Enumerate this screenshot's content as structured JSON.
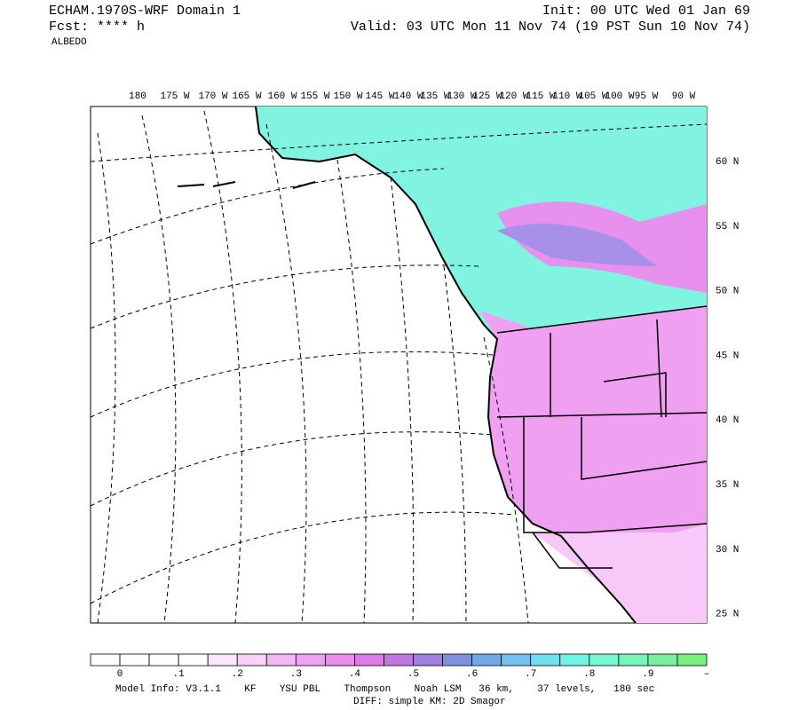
{
  "header": {
    "model": "ECHAM.1970S-WRF Domain 1",
    "forecast": "Fcst: **** h",
    "field": "ALBEDO",
    "init": "Init: 00 UTC Wed 01 Jan 69",
    "valid": "Valid: 03 UTC Mon 11 Nov 74 (19 PST Sun 10 Nov 74)"
  },
  "map": {
    "longitude_labels": [
      "180",
      "175 W",
      "170 W",
      "165 W",
      "160 W",
      "155 W",
      "150 W",
      "145 W",
      "140 W",
      "135 W",
      "130 W",
      "125 W",
      "120 W",
      "115 W",
      "110 W",
      "105 W",
      "100 W",
      "95 W",
      "90 W"
    ],
    "latitude_labels": [
      "60 N",
      "55 N",
      "50 N",
      "45 N",
      "40 N",
      "35 N",
      "30 N",
      "25 N"
    ]
  },
  "colorbar": {
    "colors": [
      "#ffffff",
      "#ffffff",
      "#ffffff",
      "#ffffff",
      "#fce6fc",
      "#f8d0f8",
      "#f4b8f4",
      "#f0a0f0",
      "#ea8cea",
      "#e078e8",
      "#c078e0",
      "#a080e0",
      "#8090e0",
      "#70a8e8",
      "#70c0f0",
      "#70e0f0",
      "#70f4e4",
      "#78f8d0",
      "#78f4b8",
      "#78f0a0",
      "#78f080"
    ],
    "labels": [
      "0",
      ".1",
      ".2",
      ".3",
      ".4",
      ".5",
      ".6",
      ".7",
      ".8",
      ".9",
      "–"
    ]
  },
  "footer": {
    "model_info": "Model Info: V3.1.1    KF    YSU PBL    Thompson    Noah LSM   36 km,    37 levels,   180 sec",
    "diff": "DIFF: simple KM: 2D Smagor"
  }
}
